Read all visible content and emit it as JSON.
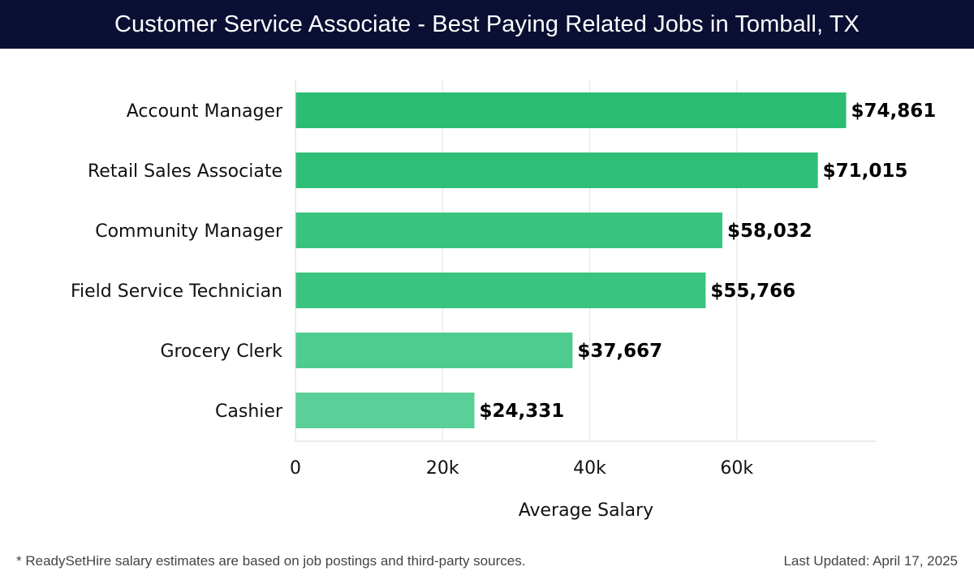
{
  "header": {
    "title": "Customer Service Associate - Best Paying Related Jobs in Tomball, TX"
  },
  "footer": {
    "note": "* ReadySetHire salary estimates are based on job postings and third-party sources.",
    "updated": "Last Updated: April 17, 2025"
  },
  "colors": {
    "header_bg": "#0b0f33",
    "bar_colors": [
      "#2bbd72",
      "#2fbf77",
      "#38c47f",
      "#3bc480",
      "#4ecb8e",
      "#5acf97"
    ]
  },
  "chart_data": {
    "type": "bar",
    "orientation": "horizontal",
    "title": "Customer Service Associate - Best Paying Related Jobs in Tomball, TX",
    "xlabel": "Average Salary",
    "ylabel": "",
    "categories": [
      "Account Manager",
      "Retail Sales Associate",
      "Community Manager",
      "Field Service Technician",
      "Grocery Clerk",
      "Cashier"
    ],
    "values": [
      74861,
      71015,
      58032,
      55766,
      37667,
      24331
    ],
    "value_labels": [
      "$74,861",
      "$71,015",
      "$58,032",
      "$55,766",
      "$37,667",
      "$24,331"
    ],
    "xlim": [
      0,
      79000
    ],
    "xticks": [
      0,
      20000,
      40000,
      60000
    ],
    "xtick_labels": [
      "0",
      "20k",
      "40k",
      "60k"
    ],
    "grid": "vertical"
  }
}
